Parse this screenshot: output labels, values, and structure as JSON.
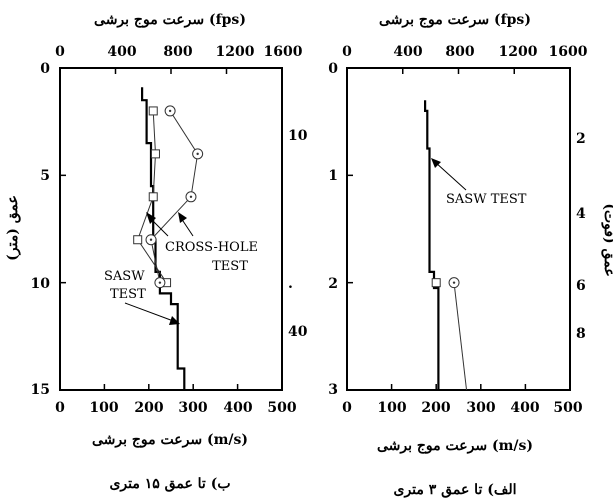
{
  "chart_data": [
    {
      "type": "line",
      "caption": "ب) تا عمق ۱۵ متری",
      "top_axis_title": "سرعت موج برشی (fps)",
      "bottom_axis_title": "سرعت موج برشی (m/s)",
      "left_axis_title": "عمق (متر)",
      "x_ticks": [
        "0",
        "100",
        "200",
        "300",
        "400",
        "500"
      ],
      "x_top_ticks": [
        "0",
        "400",
        "800",
        "1200",
        "1600"
      ],
      "y_ticks": [
        "0",
        "5",
        "10",
        "15"
      ],
      "y_right_ticks": [
        "10",
        "40"
      ],
      "stray_mark": ".",
      "xlim": [
        0,
        500
      ],
      "ylim": [
        0,
        15
      ],
      "annotations": [
        {
          "text": "CROSS-HOLE"
        },
        {
          "text": "TEST"
        },
        {
          "text": "SASW"
        },
        {
          "text": "TEST"
        }
      ],
      "series": [
        {
          "name": "SASW TEST",
          "step_profile": [
            [
              185,
              0.9
            ],
            [
              185,
              1.5
            ],
            [
              195,
              1.5
            ],
            [
              195,
              3.5
            ],
            [
              205,
              3.5
            ],
            [
              205,
              5.5
            ],
            [
              210,
              5.5
            ],
            [
              210,
              8.0
            ],
            [
              215,
              8.0
            ],
            [
              215,
              9.5
            ],
            [
              225,
              9.5
            ],
            [
              225,
              10.5
            ],
            [
              250,
              10.5
            ],
            [
              250,
              11.0
            ],
            [
              265,
              11.0
            ],
            [
              265,
              14.0
            ],
            [
              280,
              14.0
            ],
            [
              280,
              15.0
            ]
          ]
        },
        {
          "name": "CROSS-HOLE TEST",
          "points_square": [
            [
              210,
              2.0
            ],
            [
              215,
              4.0
            ],
            [
              210,
              6.0
            ],
            [
              175,
              8.0
            ],
            [
              240,
              10.0
            ]
          ],
          "points_circle": [
            [
              248,
              2.0
            ],
            [
              310,
              4.0
            ],
            [
              295,
              6.0
            ],
            [
              205,
              8.0
            ],
            [
              225,
              10.0
            ]
          ]
        }
      ]
    },
    {
      "type": "line",
      "caption": "الف) تا عمق ۳ متری",
      "top_axis_title": "سرعت موج برشی (fps)",
      "bottom_axis_title": "سرعت موج برشی (m/s)",
      "right_axis_title": "عمق (فوت)",
      "x_ticks": [
        "0",
        "100",
        "200",
        "300",
        "400",
        "500"
      ],
      "x_top_ticks": [
        "0",
        "400",
        "800",
        "1200",
        "1600"
      ],
      "y_ticks": [
        "0",
        "1",
        "2",
        "3"
      ],
      "y_right_ticks": [
        "2",
        "4",
        "6",
        "8"
      ],
      "xlim": [
        0,
        500
      ],
      "ylim": [
        0,
        3
      ],
      "annotations": [
        {
          "text": "SASW TEST"
        }
      ],
      "series": [
        {
          "name": "SASW TEST",
          "step_profile": [
            [
              175,
              0.3
            ],
            [
              175,
              0.4
            ],
            [
              180,
              0.4
            ],
            [
              180,
              0.75
            ],
            [
              185,
              0.75
            ],
            [
              185,
              1.9
            ],
            [
              195,
              1.9
            ],
            [
              195,
              2.05
            ],
            [
              205,
              2.05
            ],
            [
              205,
              3.0
            ]
          ]
        },
        {
          "name": "CROSS-HOLE",
          "points_square": [
            [
              200,
              2.0
            ]
          ],
          "points_circle": [
            [
              240,
              2.0
            ]
          ],
          "tail": [
            [
              240,
              2.0
            ],
            [
              268,
              3.0
            ]
          ]
        }
      ]
    }
  ]
}
